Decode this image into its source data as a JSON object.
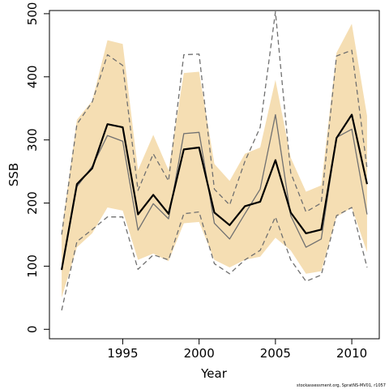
{
  "chart_data": {
    "type": "line",
    "title": "",
    "xlabel": "Year",
    "ylabel": "SSB",
    "xlim": [
      1990.2,
      2011.8
    ],
    "ylim": [
      -15,
      505
    ],
    "x_ticks": [
      1995,
      2000,
      2005,
      2010
    ],
    "y_ticks": [
      0,
      100,
      200,
      300,
      400,
      500
    ],
    "grid": false,
    "legend": "none",
    "x": [
      1991,
      1992,
      1993,
      1994,
      1995,
      1996,
      1997,
      1998,
      1999,
      2000,
      2001,
      2002,
      2003,
      2004,
      2005,
      2006,
      2007,
      2008,
      2009,
      2010,
      2011
    ],
    "band": {
      "color": "#f5deb3",
      "upper": [
        155,
        332,
        362,
        458,
        452,
        252,
        308,
        252,
        406,
        408,
        262,
        235,
        278,
        288,
        395,
        272,
        218,
        228,
        438,
        484,
        338
      ],
      "lower": [
        50,
        130,
        152,
        193,
        188,
        110,
        120,
        108,
        168,
        170,
        110,
        98,
        110,
        115,
        145,
        125,
        88,
        92,
        178,
        193,
        122
      ]
    },
    "series": [
      {
        "color": "#000000",
        "style": "solid-thick",
        "values": [
          94,
          230,
          255,
          325,
          320,
          182,
          213,
          183,
          285,
          288,
          185,
          165,
          195,
          202,
          268,
          185,
          152,
          158,
          303,
          340,
          230
        ]
      },
      {
        "color": "#707070",
        "style": "solid-thin",
        "values": [
          95,
          226,
          258,
          307,
          298,
          157,
          199,
          175,
          310,
          312,
          168,
          143,
          183,
          222,
          340,
          180,
          130,
          143,
          304,
          317,
          182
        ]
      },
      {
        "color": "#707070",
        "style": "dashed",
        "values": [
          150,
          325,
          360,
          435,
          418,
          220,
          278,
          235,
          435,
          436,
          222,
          197,
          266,
          320,
          503,
          248,
          186,
          200,
          433,
          442,
          255
        ]
      },
      {
        "color": "#707070",
        "style": "dashed",
        "values": [
          30,
          139,
          158,
          178,
          178,
          95,
          118,
          110,
          183,
          186,
          104,
          88,
          110,
          125,
          178,
          110,
          76,
          86,
          180,
          193,
          98
        ]
      }
    ]
  },
  "footer": {
    "credit": "stockassessment.org, SpratNS-MV01, r1057"
  }
}
